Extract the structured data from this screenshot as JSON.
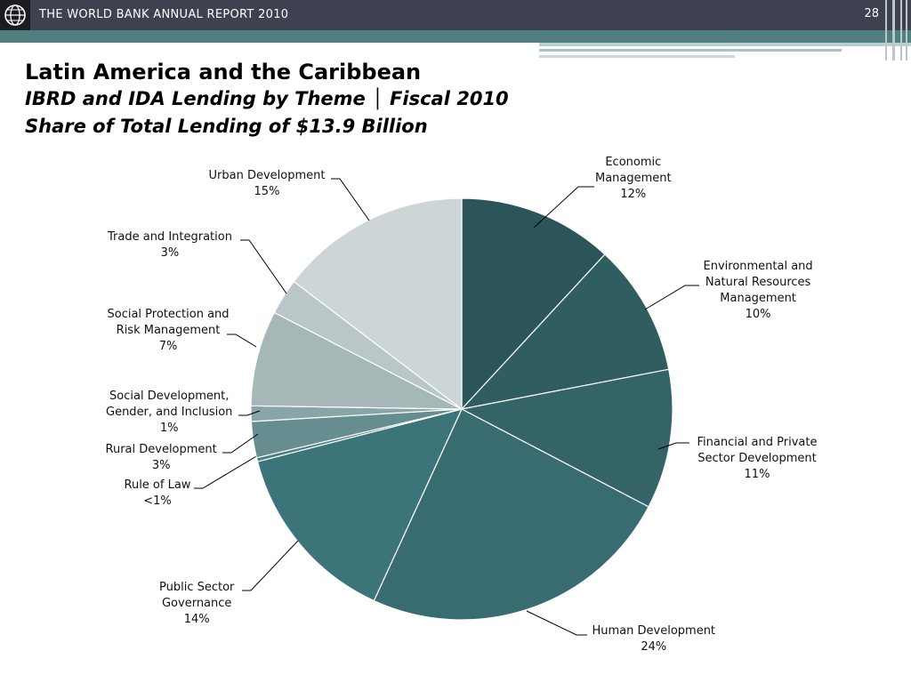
{
  "header": {
    "report_title": "THE WORLD BANK ANNUAL REPORT 2010",
    "page_number": "28"
  },
  "colors": {
    "topbar": "#3f4050",
    "band": "#4f7f7f",
    "slice_dark": "#2b5558",
    "slice_light": "#cdd5d6"
  },
  "titles": {
    "line1": "Latin America and the Caribbean",
    "line2": "IBRD and IDA Lending by Theme │ Fiscal 2010",
    "line3": "Share of Total Lending of $13.9 Billion"
  },
  "chart_data": {
    "type": "pie",
    "start": "top",
    "direction": "clockwise",
    "slices": [
      {
        "label": "Economic\nManagement",
        "percent_label": "12%",
        "value": 12,
        "color": "#2b5558"
      },
      {
        "label": "Environmental and\nNatural Resources\nManagement",
        "percent_label": "10%",
        "value": 10.2,
        "color": "#305d60"
      },
      {
        "label": "Financial and Private\nSector Development",
        "percent_label": "11%",
        "value": 10.8,
        "color": "#346468"
      },
      {
        "label": "Human Development",
        "percent_label": "24%",
        "value": 24.4,
        "color": "#386c70"
      },
      {
        "label": "Public Sector\nGovernance",
        "percent_label": "14%",
        "value": 14.3,
        "color": "#3c7579"
      },
      {
        "label": "Rule of Law",
        "percent_label": "<1%",
        "value": 0.3,
        "color": "#4a7f82"
      },
      {
        "label": "Rural Development",
        "percent_label": "3%",
        "value": 2.8,
        "color": "#668e90"
      },
      {
        "label": "Social Development,\nGender, and Inclusion",
        "percent_label": "1%",
        "value": 1.2,
        "color": "#8aa5a7"
      },
      {
        "label": "Social Protection and\nRisk Management",
        "percent_label": "7%",
        "value": 7.4,
        "color": "#a6b7b8"
      },
      {
        "label": "Trade and Integration",
        "percent_label": "3%",
        "value": 2.8,
        "color": "#bac7c8"
      },
      {
        "label": "Urban Development",
        "percent_label": "15%",
        "value": 14.8,
        "color": "#cdd5d6"
      }
    ]
  }
}
